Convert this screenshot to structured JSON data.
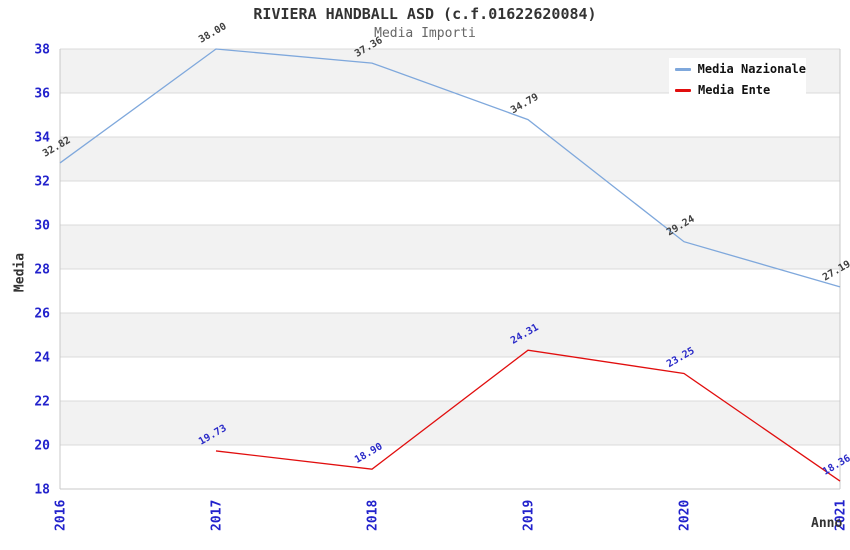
{
  "title": "RIVIERA HANDBALL ASD (c.f.01622620084)",
  "subtitle": "Media Importi",
  "legend": {
    "position": "top-right",
    "items": [
      {
        "label": "Media Nazionale",
        "color": "#7fa8dc"
      },
      {
        "label": "Media Ente",
        "color": "#e10e0e"
      }
    ]
  },
  "colors": {
    "band_gray": "#f2f2f2",
    "band_white": "#ffffff",
    "gridline": "#dbdbdb",
    "border": "#c8c8c8",
    "tick_label": "#2222cc",
    "title_text": "#333333",
    "subtitle_text": "#666666"
  },
  "chart_data": {
    "type": "line",
    "title": "RIVIERA HANDBALL ASD (c.f.01622620084)",
    "subtitle": "Media Importi",
    "xlabel": "Anno",
    "ylabel": "Media",
    "x": [
      2016,
      2017,
      2018,
      2019,
      2020,
      2021
    ],
    "ylim": [
      18,
      38
    ],
    "ytick_step": 2,
    "grid": true,
    "banded_background": true,
    "legend_position": "top-right",
    "series": [
      {
        "name": "Media Nazionale",
        "color": "#7fa8dc",
        "label_color": "#3f3f3f",
        "values": [
          32.82,
          38.0,
          37.36,
          34.79,
          29.24,
          27.19
        ]
      },
      {
        "name": "Media Ente",
        "color": "#e10e0e",
        "label_color": "#2b2bc8",
        "values": [
          null,
          19.73,
          18.9,
          24.31,
          23.25,
          18.36
        ]
      }
    ]
  }
}
